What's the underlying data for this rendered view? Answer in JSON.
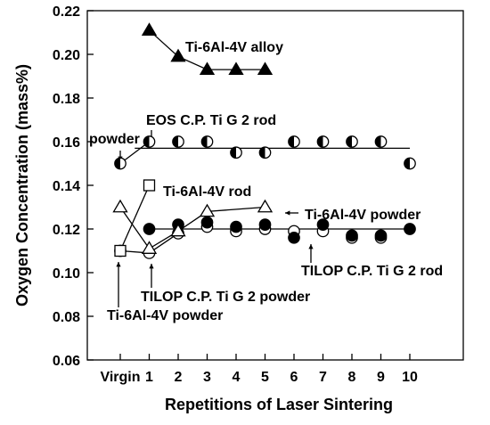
{
  "chart_data": {
    "type": "line",
    "xlabel": "Repetitions of Laser Sintering",
    "ylabel": "Oxygen  Concentration (mass%)",
    "categories": [
      "Virgin",
      "1",
      "2",
      "3",
      "4",
      "5",
      "6",
      "7",
      "8",
      "9",
      "10"
    ],
    "ylim": [
      0.06,
      0.22
    ],
    "yticks": [
      "0.06",
      "0.08",
      "0.10",
      "0.12",
      "0.14",
      "0.16",
      "0.18",
      "0.20",
      "0.22"
    ],
    "grid": false,
    "series": [
      {
        "name": "Ti-6Al-4V alloy",
        "marker": "triangle-filled",
        "x": [
          1,
          2,
          3,
          4,
          5
        ],
        "values": [
          0.211,
          0.199,
          0.193,
          0.193,
          0.193
        ]
      },
      {
        "name": "EOS C.P. Ti G 2 rod",
        "marker": "circle-half",
        "x": [
          0,
          1,
          2,
          3,
          4,
          5,
          6,
          7,
          8,
          9,
          10
        ],
        "values": [
          0.15,
          0.16,
          0.16,
          0.16,
          0.155,
          0.155,
          0.16,
          0.16,
          0.16,
          0.16,
          0.15
        ],
        "trend": [
          [
            0.5,
            0.157
          ],
          [
            10,
            0.157
          ]
        ]
      },
      {
        "name": "Ti-6Al-4V rod",
        "marker": "square-open",
        "x": [
          0,
          1
        ],
        "values": [
          0.11,
          0.14
        ]
      },
      {
        "name": "Ti-6Al-4V powder",
        "marker": "triangle-open",
        "x": [
          0,
          1,
          2,
          3,
          5
        ],
        "values": [
          0.13,
          0.111,
          0.119,
          0.128,
          0.13
        ]
      },
      {
        "name": "TILOP C.P. Ti G 2 rod",
        "marker": "circle-filled",
        "x": [
          1,
          2,
          3,
          4,
          5,
          6,
          7,
          8,
          9,
          10
        ],
        "values": [
          0.12,
          0.122,
          0.123,
          0.121,
          0.122,
          0.116,
          0.122,
          0.117,
          0.117,
          0.12
        ],
        "trend": [
          [
            1,
            0.12
          ],
          [
            10,
            0.12
          ]
        ]
      },
      {
        "name": "TILOP C.P. Ti G 2 powder",
        "marker": "circle-open",
        "x": [
          0,
          1,
          2,
          3,
          4,
          5,
          6,
          7,
          8,
          9
        ],
        "values": [
          0.11,
          0.109,
          0.118,
          0.121,
          0.119,
          0.12,
          0.119,
          0.119,
          0.116,
          0.116
        ]
      }
    ],
    "annotations": {
      "alloy": "Ti-6Al-4V alloy",
      "eos": "EOS C.P. Ti G 2 rod",
      "powder": "powder",
      "rod64": "Ti-6Al-4V rod",
      "powder64_top": "Ti-6Al-4V powder",
      "tilop_rod": "TILOP C.P. Ti G 2 rod",
      "tilop_powder": "TILOP C.P. Ti G 2 powder",
      "powder64_bottom": "Ti-6Al-4V powder"
    }
  }
}
